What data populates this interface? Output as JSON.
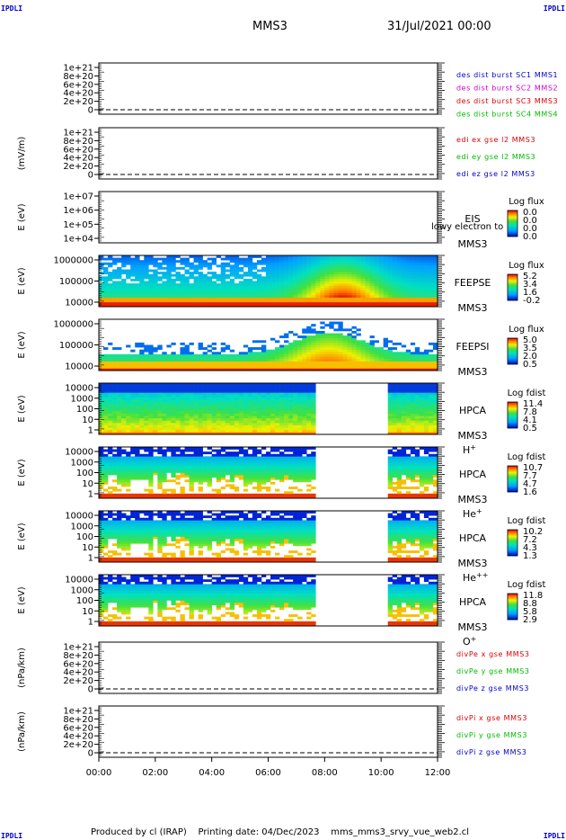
{
  "header": {
    "corner_left_top": "IPDLI",
    "corner_right_top": "IPDLI",
    "corner_left_bottom": "IPDLI",
    "corner_right_bottom": "IPDLI",
    "spacecraft": "MMS3",
    "date": "31/Jul/2021 00:00"
  },
  "footer": {
    "produced_by": "Produced by cl (IRAP)",
    "printing_date": "Printing date: 04/Dec/2023",
    "filename": "mms_mms3_srvy_vue_web2.cl"
  },
  "chart_data": {
    "type": "heatmap",
    "x_axis": {
      "range": [
        "00:00",
        "12:00"
      ],
      "tick_labels": [
        "00:00",
        "02:00",
        "04:00",
        "06:00",
        "08:00",
        "10:00",
        "12:00"
      ]
    },
    "panels": [
      {
        "type": "line",
        "ylabel": "",
        "yticks": [
          "1e+21",
          "8e+20",
          "6e+20",
          "4e+20",
          "2e+20",
          "0"
        ],
        "ylim": [
          0,
          1e+21
        ],
        "legend": [
          {
            "label": "des dist burst SC1 MMS1",
            "color": "#0000cc"
          },
          {
            "label": "des dist burst SC2 MMS2",
            "color": "#cc00cc"
          },
          {
            "label": "des dist burst SC3 MMS3",
            "color": "#dd0000"
          },
          {
            "label": "des dist burst SC4 MMS4",
            "color": "#00bb00"
          }
        ]
      },
      {
        "type": "line",
        "ylabel": "(mV/m)",
        "yticks": [
          "1e+21",
          "8e+20",
          "6e+20",
          "4e+20",
          "2e+20",
          "0"
        ],
        "ylim": [
          0,
          1e+21
        ],
        "legend": [
          {
            "label": "edi ex gse l2 MMS3",
            "color": "#dd0000"
          },
          {
            "label": "edi ey gse l2 MMS3",
            "color": "#00bb00"
          },
          {
            "label": "edi ez gse l2 MMS3",
            "color": "#0000cc"
          }
        ]
      },
      {
        "type": "heatmap",
        "ylabel": "E (eV)",
        "yticks": [
          "1e+07",
          "1e+06",
          "1e+05",
          "1e+04"
        ],
        "instrument": "EIS",
        "spacecraft": "MMS3",
        "species": "",
        "overlay_text": "lowy electron to",
        "colorbar": {
          "title": "Log flux",
          "ticks": [
            "0.0",
            "0.0",
            "0.0",
            "0.0"
          ]
        }
      },
      {
        "type": "heatmap",
        "ylabel": "E (eV)",
        "yticks": [
          "1000000",
          "100000",
          "10000"
        ],
        "instrument": "FEEPSE",
        "spacecraft": "MMS3",
        "species": "",
        "colorbar": {
          "title": "Log flux",
          "ticks": [
            "5.2",
            "3.4",
            "1.6",
            "-0.2"
          ]
        }
      },
      {
        "type": "heatmap",
        "ylabel": "E (eV)",
        "yticks": [
          "1000000",
          "100000",
          "10000"
        ],
        "instrument": "FEEPSI",
        "spacecraft": "MMS3",
        "species": "",
        "colorbar": {
          "title": "Log flux",
          "ticks": [
            "5.0",
            "3.5",
            "2.0",
            "0.5"
          ]
        }
      },
      {
        "type": "heatmap",
        "ylabel": "E (eV)",
        "yticks": [
          "10000",
          "1000",
          "100",
          "10",
          "1"
        ],
        "instrument": "HPCA",
        "spacecraft": "MMS3",
        "species": "H",
        "species_charge": "+",
        "colorbar": {
          "title": "Log fdist",
          "ticks": [
            "11.4",
            "7.8",
            "4.1",
            "0.5"
          ]
        }
      },
      {
        "type": "heatmap",
        "ylabel": "E (eV)",
        "yticks": [
          "10000",
          "1000",
          "100",
          "10",
          "1"
        ],
        "instrument": "HPCA",
        "spacecraft": "MMS3",
        "species": "He",
        "species_charge": "+",
        "colorbar": {
          "title": "Log fdist",
          "ticks": [
            "10.7",
            "7.7",
            "4.7",
            "1.6"
          ]
        }
      },
      {
        "type": "heatmap",
        "ylabel": "E (eV)",
        "yticks": [
          "10000",
          "1000",
          "100",
          "10",
          "1"
        ],
        "instrument": "HPCA",
        "spacecraft": "MMS3",
        "species": "He",
        "species_charge": "++",
        "colorbar": {
          "title": "Log fdist",
          "ticks": [
            "10.2",
            "7.2",
            "4.3",
            "1.3"
          ]
        }
      },
      {
        "type": "heatmap",
        "ylabel": "E (eV)",
        "yticks": [
          "10000",
          "1000",
          "100",
          "10",
          "1"
        ],
        "instrument": "HPCA",
        "spacecraft": "MMS3",
        "species": "O",
        "species_charge": "+",
        "colorbar": {
          "title": "Log fdist",
          "ticks": [
            "11.8",
            "8.8",
            "5.8",
            "2.9"
          ]
        }
      },
      {
        "type": "line",
        "ylabel": "(nPa/km)",
        "yticks": [
          "1e+21",
          "8e+20",
          "6e+20",
          "4e+20",
          "2e+20",
          "0"
        ],
        "ylim": [
          0,
          1e+21
        ],
        "legend": [
          {
            "label": "divPe x gse MMS3",
            "color": "#dd0000"
          },
          {
            "label": "divPe y gse MMS3",
            "color": "#00bb00"
          },
          {
            "label": "divPe z gse MMS3",
            "color": "#0000cc"
          }
        ]
      },
      {
        "type": "line",
        "ylabel": "(nPa/km)",
        "yticks": [
          "1e+21",
          "8e+20",
          "6e+20",
          "4e+20",
          "2e+20",
          "0"
        ],
        "ylim": [
          0,
          1e+21
        ],
        "legend": [
          {
            "label": "divPi x gse MMS3",
            "color": "#dd0000"
          },
          {
            "label": "divPi y gse MMS3",
            "color": "#00bb00"
          },
          {
            "label": "divPi z gse MMS3",
            "color": "#0000cc"
          }
        ]
      }
    ]
  }
}
